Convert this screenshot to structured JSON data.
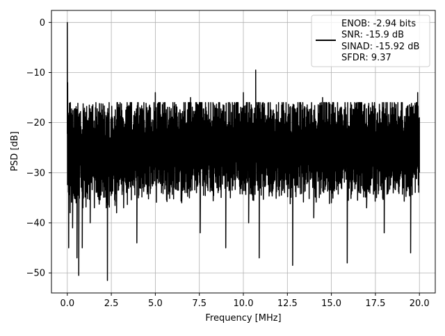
{
  "chart_data": {
    "type": "line",
    "title": "",
    "xlabel": "Frequency [MHz]",
    "ylabel": "PSD [dB]",
    "xlim": [
      -0.9,
      20.9
    ],
    "ylim": [
      -54,
      2.4
    ],
    "xticks": [
      0.0,
      2.5,
      5.0,
      7.5,
      10.0,
      12.5,
      15.0,
      17.5,
      20.0
    ],
    "xtick_labels": [
      "0.0",
      "2.5",
      "5.0",
      "7.5",
      "10.0",
      "12.5",
      "15.0",
      "17.5",
      "20.0"
    ],
    "yticks": [
      0,
      -10,
      -20,
      -30,
      -40,
      -50
    ],
    "ytick_labels": [
      "0",
      "−10",
      "−20",
      "−30",
      "−40",
      "−50"
    ],
    "grid": true,
    "legend_position": "top-right",
    "legend": [
      "ENOB: -2.94 bits",
      "SNR: -15.9 dB",
      "SINAD: -15.92 dB",
      "SFDR: 9.37"
    ],
    "series": [
      {
        "color": "#000000",
        "noise_floor_mean_db": -25,
        "noise_floor_top_db": -15,
        "noise_floor_bottom_db": -38,
        "x": [
          0.0,
          0.02,
          0.05,
          0.08,
          0.12,
          0.16,
          0.2,
          0.25,
          0.3,
          0.35,
          0.4,
          0.5,
          0.55,
          0.6,
          0.65,
          0.7,
          0.85,
          1.0,
          1.3,
          1.6,
          2.0,
          2.28,
          2.4,
          2.8,
          3.0,
          3.2,
          3.5,
          3.95,
          4.5,
          5.0,
          5.35,
          6.0,
          6.5,
          7.0,
          7.55,
          8.0,
          8.5,
          9.0,
          9.4,
          10.0,
          10.3,
          10.7,
          10.9,
          11.5,
          12.0,
          12.8,
          13.5,
          14.0,
          14.5,
          15.0,
          15.9,
          16.5,
          17.0,
          17.5,
          18.0,
          19.5,
          19.9,
          20.0
        ],
        "y": [
          0,
          -12,
          -23,
          -45,
          -18,
          -38,
          -26,
          -33,
          -41,
          -22,
          -30,
          -36,
          -47,
          -28,
          -50.5,
          -25,
          -45,
          -27,
          -40,
          -17,
          -31,
          -51.5,
          -24,
          -38,
          -16,
          -37,
          -23,
          -44,
          -29,
          -14,
          -34,
          -20,
          -36,
          -15,
          -42,
          -22,
          -33,
          -45,
          -21,
          -14,
          -40,
          -9.5,
          -47,
          -19,
          -33,
          -48.5,
          -24,
          -39,
          -15,
          -36,
          -48,
          -22,
          -37,
          -18,
          -42,
          -46,
          -14,
          -30
        ]
      }
    ]
  }
}
